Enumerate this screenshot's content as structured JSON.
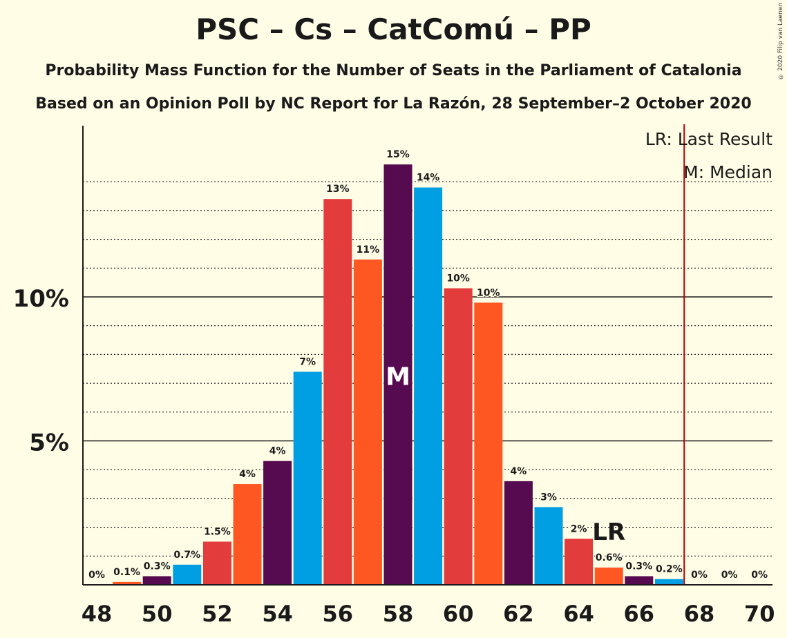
{
  "title": "PSC – Cs – CatComú – PP",
  "subtitle1": "Probability Mass Function for the Number of Seats in the Parliament of Catalonia",
  "subtitle2": "Based on an Opinion Poll by NC Report for La Razón, 28 September–2 October 2020",
  "copyright": "© 2020 Filip van Laenen",
  "legend": {
    "lr": "LR: Last Result",
    "median": "M: Median"
  },
  "markers": {
    "median_label": "M",
    "lr_label": "LR"
  },
  "colors": {
    "purple": "#560A50",
    "blue": "#009FE3",
    "red": "#E23C3C",
    "orange": "#FF5722",
    "lr_line": "#C00000",
    "background": "#FFFDE6"
  },
  "chart_data": {
    "type": "bar",
    "x": [
      48,
      49,
      50,
      51,
      52,
      53,
      54,
      55,
      56,
      57,
      58,
      59,
      60,
      61,
      62,
      63,
      64,
      65,
      66,
      67,
      68,
      69,
      70
    ],
    "values": [
      0,
      0.1,
      0.3,
      0.7,
      1.5,
      3.5,
      4.3,
      7.4,
      13.4,
      11.3,
      14.6,
      13.8,
      10.3,
      9.8,
      3.6,
      2.7,
      1.6,
      0.6,
      0.3,
      0.2,
      0,
      0,
      0
    ],
    "labels": [
      "0%",
      "0.1%",
      "0.3%",
      "0.7%",
      "1.5%",
      "4%",
      "4%",
      "7%",
      "13%",
      "11%",
      "15%",
      "14%",
      "10%",
      "10%",
      "4%",
      "3%",
      "2%",
      "0.6%",
      "0.3%",
      "0.2%",
      "0%",
      "0%",
      "0%"
    ],
    "bar_colors": [
      "purple",
      "orange",
      "purple",
      "blue",
      "red",
      "orange",
      "purple",
      "blue",
      "red",
      "orange",
      "purple",
      "blue",
      "red",
      "orange",
      "purple",
      "blue",
      "red",
      "orange",
      "purple",
      "blue",
      "red",
      "orange",
      "purple"
    ],
    "x_tick_labels": [
      "48",
      "50",
      "52",
      "54",
      "56",
      "58",
      "60",
      "62",
      "64",
      "66",
      "68",
      "70"
    ],
    "y_tick_labels": [
      {
        "value": 5,
        "label": "5%"
      },
      {
        "value": 10,
        "label": "10%"
      }
    ],
    "ylim": [
      0,
      16
    ],
    "median_seat": 58,
    "last_result_seat": 65,
    "last_result_line_x": 67.5
  }
}
